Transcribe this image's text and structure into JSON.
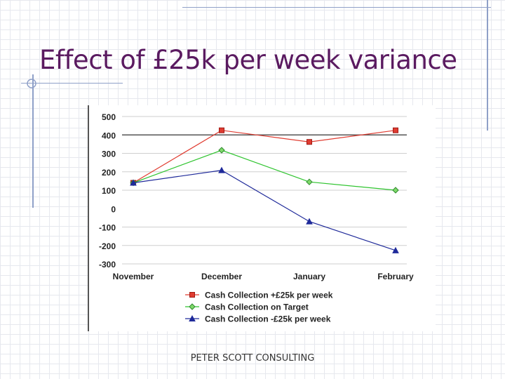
{
  "slide": {
    "title": "Effect of £25k per week variance",
    "footer": "PETER SCOTT CONSULTING"
  },
  "colors": {
    "title": "#5a1a60",
    "series": [
      "#e03c31",
      "#2fc42f",
      "#1f2a9a"
    ],
    "markers": [
      "#e03c31",
      "#7fd96a",
      "#1f2a9a"
    ]
  },
  "chart_data": {
    "type": "line",
    "categories": [
      "November",
      "December",
      "January",
      "February"
    ],
    "series": [
      {
        "name": "Cash Collection +£25k per week",
        "values": [
          140,
          425,
          362,
          425
        ],
        "marker": "square"
      },
      {
        "name": "Cash Collection on Target",
        "values": [
          140,
          317,
          145,
          100
        ],
        "marker": "diamond"
      },
      {
        "name": "Cash Collection -£25k per week",
        "values": [
          140,
          208,
          -70,
          -227
        ],
        "marker": "triangle"
      }
    ],
    "ylim": [
      -300,
      500
    ],
    "yticks": [
      "500",
      "400",
      "300",
      "200",
      "100",
      "0",
      "-100",
      "-200",
      "-300"
    ],
    "grid": true,
    "legend": "bottom"
  }
}
